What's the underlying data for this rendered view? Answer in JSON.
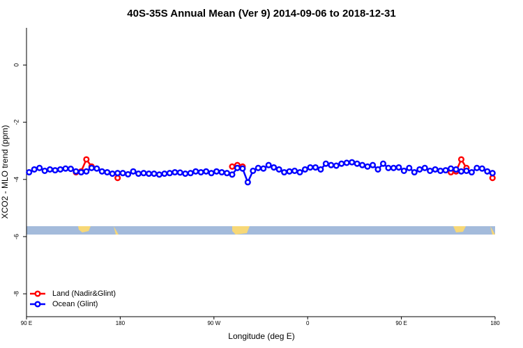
{
  "chart_data": {
    "type": "line",
    "title": "40S-35S Annual Mean (Ver 9)   2014-09-06 to 2018-12-31",
    "x_label": "Longitude (deg E)",
    "y_label": "XCO2 - MLO trend (ppm)",
    "xlim": [
      90,
      540
    ],
    "xticks": [
      {
        "value": 90,
        "label": "90 E"
      },
      {
        "value": 180,
        "label": "180"
      },
      {
        "value": 270,
        "label": "90 W"
      },
      {
        "value": 360,
        "label": "0"
      },
      {
        "value": 450,
        "label": "90 E"
      },
      {
        "value": 540,
        "label": "180"
      }
    ],
    "ylim": [
      -8.8,
      1.3
    ],
    "yticks": [
      0,
      -2,
      -4,
      -6,
      -8
    ],
    "legend": "bottom-left",
    "x": [
      92.5,
      97.5,
      102.5,
      107.5,
      112.5,
      117.5,
      122.5,
      127.5,
      132.5,
      137.5,
      142.5,
      147.5,
      152.5,
      157.5,
      162.5,
      167.5,
      172.5,
      177.5,
      182.5,
      187.5,
      192.5,
      197.5,
      202.5,
      207.5,
      212.5,
      217.5,
      222.5,
      227.5,
      232.5,
      237.5,
      242.5,
      247.5,
      252.5,
      257.5,
      262.5,
      267.5,
      272.5,
      277.5,
      282.5,
      287.5,
      292.5,
      297.5,
      302.5,
      307.5,
      312.5,
      317.5,
      322.5,
      327.5,
      332.5,
      337.5,
      342.5,
      347.5,
      352.5,
      357.5,
      362.5,
      367.5,
      372.5,
      377.5,
      382.5,
      387.5,
      392.5,
      397.5,
      402.5,
      407.5,
      412.5,
      417.5,
      422.5,
      427.5,
      432.5,
      437.5,
      442.5,
      447.5,
      452.5,
      457.5,
      462.5,
      467.5,
      472.5,
      477.5,
      482.5,
      487.5,
      492.5,
      497.5,
      502.5,
      507.5,
      512.5,
      517.5,
      522.5,
      527.5,
      532.5,
      537.5
    ],
    "series": [
      {
        "name": "Land (Nadir&Glint)",
        "color": "#ff0000",
        "values": [
          null,
          null,
          null,
          null,
          null,
          null,
          null,
          null,
          null,
          -3.75,
          -3.72,
          -3.3,
          -3.55,
          null,
          null,
          null,
          null,
          -3.95,
          null,
          null,
          null,
          null,
          null,
          null,
          null,
          null,
          null,
          null,
          null,
          null,
          null,
          null,
          null,
          null,
          null,
          null,
          null,
          null,
          null,
          -3.55,
          -3.5,
          -3.55,
          null,
          null,
          null,
          null,
          null,
          null,
          null,
          null,
          null,
          null,
          null,
          null,
          null,
          null,
          null,
          null,
          null,
          null,
          null,
          null,
          null,
          null,
          null,
          null,
          null,
          null,
          null,
          null,
          null,
          null,
          null,
          null,
          null,
          null,
          null,
          null,
          null,
          null,
          null,
          -3.75,
          -3.72,
          -3.3,
          -3.6,
          null,
          null,
          null,
          null,
          -3.95
        ]
      },
      {
        "name": "Ocean (Glint)",
        "color": "#0000ff",
        "values": [
          -3.75,
          -3.65,
          -3.6,
          -3.7,
          -3.65,
          -3.68,
          -3.65,
          -3.62,
          -3.63,
          -3.72,
          -3.75,
          -3.72,
          -3.6,
          -3.62,
          -3.72,
          -3.75,
          -3.8,
          -3.78,
          -3.78,
          -3.82,
          -3.72,
          -3.8,
          -3.78,
          -3.8,
          -3.8,
          -3.83,
          -3.8,
          -3.78,
          -3.75,
          -3.76,
          -3.8,
          -3.78,
          -3.72,
          -3.75,
          -3.72,
          -3.78,
          -3.72,
          -3.75,
          -3.78,
          -3.83,
          -3.6,
          -3.62,
          -4.1,
          -3.7,
          -3.6,
          -3.62,
          -3.5,
          -3.58,
          -3.65,
          -3.75,
          -3.72,
          -3.7,
          -3.75,
          -3.65,
          -3.58,
          -3.58,
          -3.65,
          -3.45,
          -3.5,
          -3.52,
          -3.45,
          -3.42,
          -3.4,
          -3.45,
          -3.5,
          -3.55,
          -3.5,
          -3.65,
          -3.45,
          -3.6,
          -3.6,
          -3.58,
          -3.7,
          -3.6,
          -3.75,
          -3.65,
          -3.6,
          -3.7,
          -3.65,
          -3.7,
          -3.68,
          -3.62,
          -3.65,
          -3.72,
          -3.7,
          -3.75,
          -3.6,
          -3.62,
          -3.72,
          -3.78
        ]
      }
    ]
  }
}
